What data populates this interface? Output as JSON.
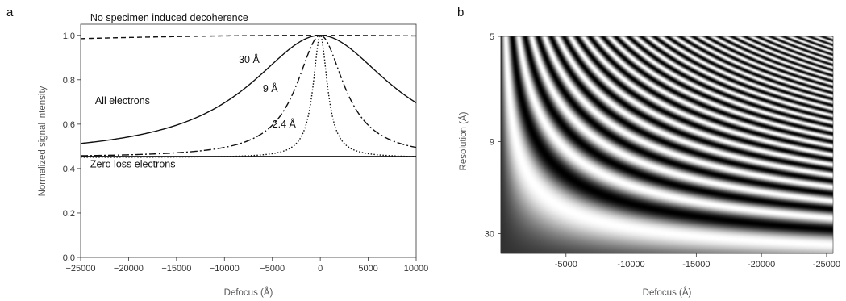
{
  "chart_data": [
    {
      "panel": "a",
      "type": "line",
      "xlabel": "Defocus (Å)",
      "ylabel": "Normalized signal intensity",
      "xlim": [
        -25000,
        10000
      ],
      "ylim": [
        0.0,
        1.05
      ],
      "xticks": [
        "−25000",
        "−20000",
        "−15000",
        "−10000",
        "−5000",
        "0",
        "5000",
        "10000"
      ],
      "xtick_values": [
        -25000,
        -20000,
        -15000,
        -10000,
        -5000,
        0,
        5000,
        10000
      ],
      "yticks": [
        "0.0",
        "0.2",
        "0.4",
        "0.6",
        "0.8",
        "1.0"
      ],
      "ytick_values": [
        0.0,
        0.2,
        0.4,
        0.6,
        0.8,
        1.0
      ],
      "series": [
        {
          "style": "dashed",
          "model": "lorentzian",
          "base": 0.45,
          "amp": 0.55,
          "width": 150000
        },
        {
          "label": "30 Å",
          "style": "solid",
          "model": "lorentzian",
          "base": 0.45,
          "amp": 0.55,
          "width": 9000
        },
        {
          "label": "9 Å",
          "style": "dashdot",
          "model": "lorentzian",
          "base": 0.45,
          "amp": 0.55,
          "width": 3000
        },
        {
          "label": "2.4 Å",
          "style": "dotted",
          "model": "lorentzian",
          "base": 0.45,
          "amp": 0.55,
          "width": 900
        },
        {
          "style": "solid",
          "model": "lorentzian",
          "base": 0.455,
          "amp": 0.0,
          "width": 1
        }
      ],
      "annotations": [
        {
          "text": "No specimen induced decoherence",
          "x": -24000,
          "y": 1.065
        },
        {
          "text": "30 Å",
          "x": -8500,
          "y": 0.875
        },
        {
          "text": "9 Å",
          "x": -6000,
          "y": 0.745
        },
        {
          "text": "2.4 Å",
          "x": -5000,
          "y": 0.585
        },
        {
          "text": "All electrons",
          "x": -23500,
          "y": 0.69
        },
        {
          "text": "Zero loss electrons",
          "x": -24000,
          "y": 0.405
        }
      ]
    },
    {
      "panel": "b",
      "type": "heatmap",
      "xlabel": "Defocus (Å)",
      "ylabel": "Resolution (Å)",
      "xlim": [
        0,
        -25500
      ],
      "xticks": [
        "-5000",
        "-10000",
        "-15000",
        "-20000",
        "-25000"
      ],
      "xtick_values": [
        -5000,
        -10000,
        -15000,
        -20000,
        -25000
      ],
      "yticks": [
        "5",
        "9",
        "30"
      ],
      "ytick_values": [
        5,
        9,
        30
      ],
      "colormap": "grayscale",
      "description_function": "sin^2(pi*lambda*defocus*s^2), s = 1/resolution"
    }
  ],
  "panel_labels": {
    "a": "a",
    "b": "b"
  }
}
